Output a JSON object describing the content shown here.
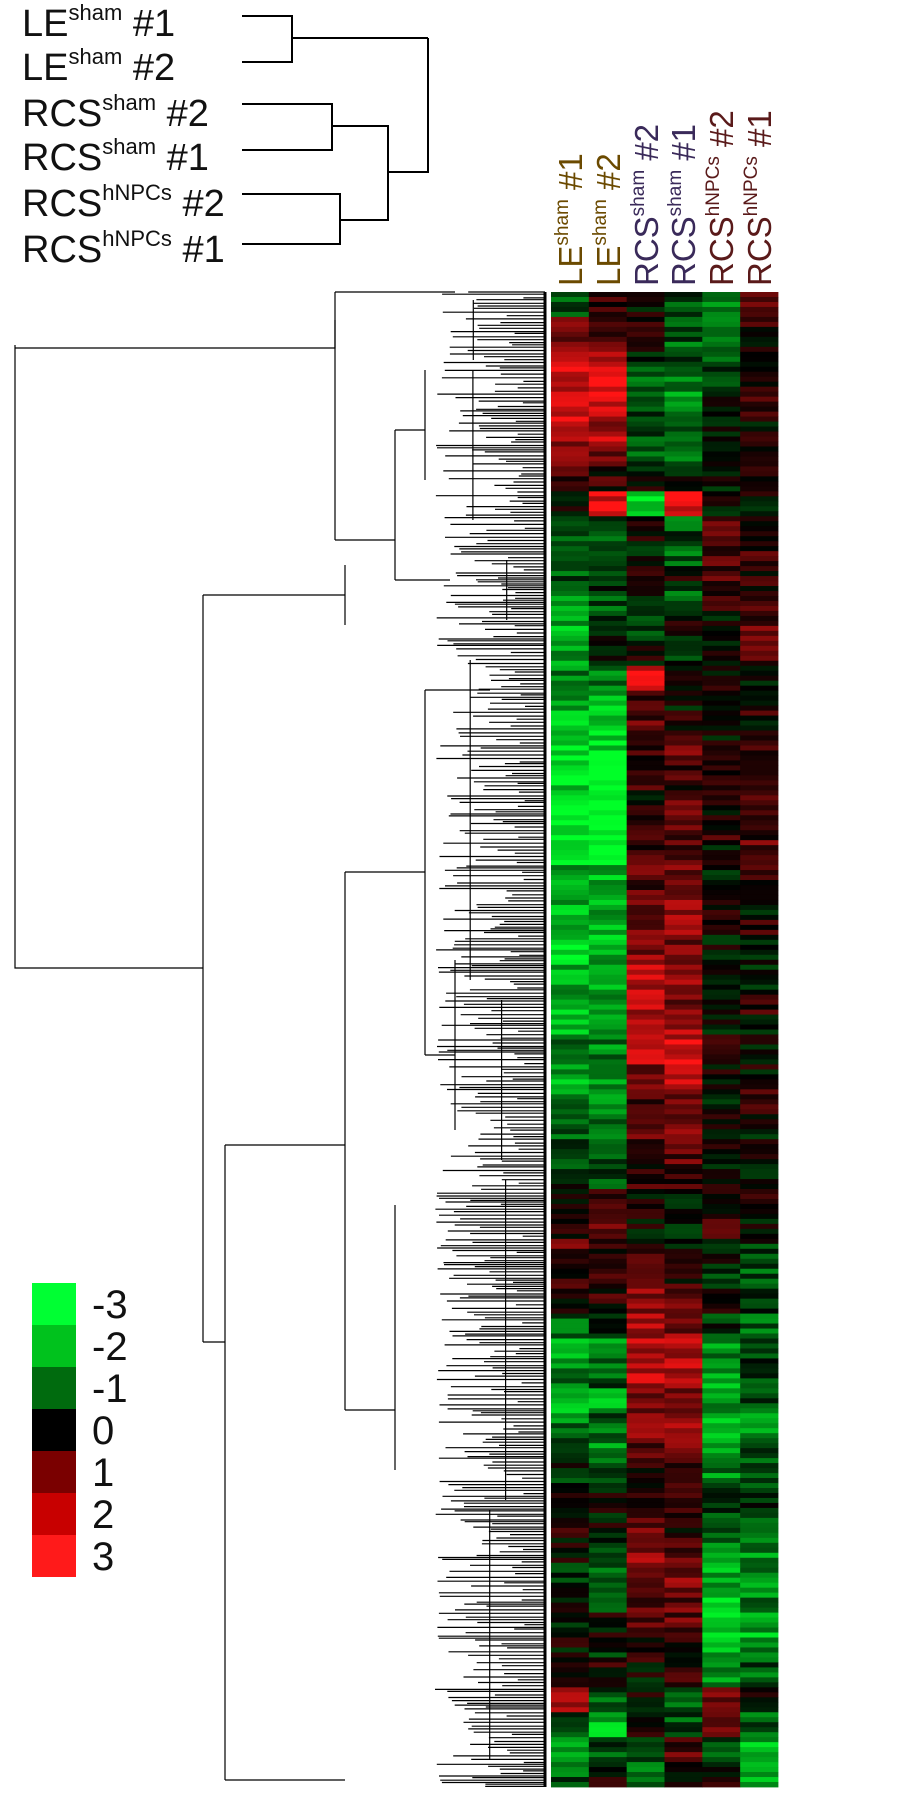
{
  "chart_data": {
    "type": "heatmap",
    "title": "",
    "samples_dendrogram_order": [
      {
        "name": "LE",
        "sup": "sham",
        "rep": "#1"
      },
      {
        "name": "LE",
        "sup": "sham",
        "rep": "#2"
      },
      {
        "name": "RCS",
        "sup": "sham",
        "rep": "#2"
      },
      {
        "name": "RCS",
        "sup": "sham",
        "rep": "#1"
      },
      {
        "name": "RCS",
        "sup": "hNPCs",
        "rep": "#2"
      },
      {
        "name": "RCS",
        "sup": "hNPCs",
        "rep": "#1"
      }
    ],
    "columns": [
      {
        "name": "LE",
        "sup": "sham",
        "rep": "#1",
        "group": "le"
      },
      {
        "name": "LE",
        "sup": "sham",
        "rep": "#2",
        "group": "le"
      },
      {
        "name": "RCS",
        "sup": "sham",
        "rep": "#2",
        "group": "rcs-sham"
      },
      {
        "name": "RCS",
        "sup": "sham",
        "rep": "#1",
        "group": "rcs-sham"
      },
      {
        "name": "RCS",
        "sup": "hNPCs",
        "rep": "#2",
        "group": "rcs-hnpc"
      },
      {
        "name": "RCS",
        "sup": "hNPCs",
        "rep": "#1",
        "group": "rcs-hnpc"
      }
    ],
    "color_scale": {
      "values": [
        -3,
        -2,
        -1,
        0,
        1,
        2,
        3
      ],
      "labels": [
        "-3",
        "-2",
        "-1",
        "0",
        "1",
        "2",
        "3"
      ],
      "colors": [
        "#00ff33",
        "#00c21d",
        "#006b0e",
        "#000000",
        "#7a0000",
        "#c80000",
        "#ff1a1a"
      ]
    },
    "profile_rows": 60,
    "profile": [
      [
        -1,
        0.5,
        0,
        -1,
        -1.5,
        1
      ],
      [
        1,
        1,
        0.5,
        -1,
        -1.5,
        0.5
      ],
      [
        2,
        2,
        0,
        -1,
        -1,
        0
      ],
      [
        2.5,
        2.5,
        -1,
        -1.5,
        -1,
        0
      ],
      [
        2.5,
        2.5,
        -1,
        -1.5,
        0,
        0.5
      ],
      [
        2.5,
        2,
        -1,
        -1,
        0,
        0
      ],
      [
        1.5,
        1.5,
        -1,
        -1.5,
        0,
        0.5
      ],
      [
        0.5,
        0.5,
        0,
        -0.5,
        0,
        0
      ],
      [
        0,
        2.5,
        -2.5,
        2.5,
        0,
        0
      ],
      [
        -1,
        -1,
        0.5,
        -1,
        1,
        0
      ],
      [
        -1.5,
        -1,
        -0.5,
        -1,
        1,
        0.5
      ],
      [
        -1,
        -0.5,
        0,
        0,
        1,
        0.5
      ],
      [
        -1.5,
        -1,
        0,
        -1,
        0.5,
        1
      ],
      [
        -2,
        0,
        -1,
        0,
        0,
        1
      ],
      [
        -2,
        -0.5,
        0,
        -0.5,
        0,
        1
      ],
      [
        -1.5,
        -1.5,
        2.5,
        0.5,
        0,
        0
      ],
      [
        -2,
        -2,
        1,
        0,
        0,
        0.5
      ],
      [
        -2.5,
        -2.5,
        1,
        0.5,
        0,
        0
      ],
      [
        -2.5,
        -2.5,
        0.5,
        1,
        0,
        0.5
      ],
      [
        -2.5,
        -3,
        0.5,
        0.5,
        0,
        0
      ],
      [
        -3,
        -3,
        0,
        1,
        0,
        0.5
      ],
      [
        -3,
        -3,
        0.5,
        1,
        0.5,
        0.5
      ],
      [
        -3,
        -3,
        0.5,
        1,
        0,
        1
      ],
      [
        -2,
        -2,
        1,
        1.5,
        0,
        0.5
      ],
      [
        -2,
        -2,
        1.5,
        1.5,
        0.5,
        0
      ],
      [
        -2,
        -2,
        1.5,
        2,
        0,
        0.5
      ],
      [
        -2.5,
        -2,
        1.5,
        1.5,
        0,
        0
      ],
      [
        -2,
        -2,
        2,
        2,
        0,
        -0.5
      ],
      [
        -2,
        -2,
        2,
        1.5,
        0,
        0.5
      ],
      [
        -2,
        -2,
        2.5,
        2,
        0,
        0
      ],
      [
        -1.5,
        -1.5,
        2,
        2.5,
        0.5,
        0
      ],
      [
        -2,
        -1.5,
        1.5,
        2,
        0,
        0
      ],
      [
        -1.5,
        -2,
        1,
        1.5,
        0,
        0.5
      ],
      [
        -1,
        -1.5,
        1,
        1.5,
        0,
        0
      ],
      [
        -1,
        -1,
        1,
        1,
        0,
        0
      ],
      [
        -0.5,
        -1,
        0.5,
        0.5,
        0,
        0
      ],
      [
        0,
        0.5,
        0,
        0,
        0,
        0.5
      ],
      [
        0.5,
        1,
        0,
        -0.5,
        0.5,
        0
      ],
      [
        1,
        0.5,
        0.5,
        0,
        0,
        -0.5
      ],
      [
        0.5,
        1,
        1,
        0.5,
        -0.5,
        -1
      ],
      [
        0,
        0.5,
        1.5,
        1,
        0,
        -0.5
      ],
      [
        -1,
        -0.5,
        2,
        1.5,
        -0.5,
        -1
      ],
      [
        -2,
        -1.5,
        2,
        2,
        -1.5,
        -0.5
      ],
      [
        -1.5,
        -1,
        2,
        2,
        -2,
        -1
      ],
      [
        -2,
        -2,
        1.5,
        1.5,
        -2,
        -1
      ],
      [
        -1.5,
        -1,
        1.5,
        2,
        -2.5,
        -1.5
      ],
      [
        -1,
        -1.5,
        1,
        1.5,
        -2,
        -1
      ],
      [
        -0.5,
        -1,
        0.5,
        1,
        -1.5,
        -1
      ],
      [
        0,
        0,
        0,
        0.5,
        -0.5,
        -0.5
      ],
      [
        0.5,
        0,
        1,
        0.5,
        -1,
        -1
      ],
      [
        0,
        -0.5,
        1.5,
        1,
        -1.5,
        -1.5
      ],
      [
        -0.5,
        -1,
        1.5,
        1.5,
        -2,
        -1.5
      ],
      [
        0,
        -0.5,
        1,
        1,
        -2.5,
        -1.5
      ],
      [
        -0.5,
        0,
        1,
        1,
        -2.5,
        -2
      ],
      [
        0,
        -0.5,
        0.5,
        0.5,
        -2,
        -1.5
      ],
      [
        0.5,
        0.5,
        0,
        0.5,
        -1.5,
        -1
      ],
      [
        1.5,
        -1,
        0,
        -1,
        1,
        0
      ],
      [
        -1,
        -2,
        0,
        -1,
        1.5,
        -1
      ],
      [
        -1.5,
        -1,
        -1,
        1,
        -1,
        -2
      ],
      [
        -1,
        0,
        -1,
        0,
        0,
        -2
      ]
    ]
  }
}
